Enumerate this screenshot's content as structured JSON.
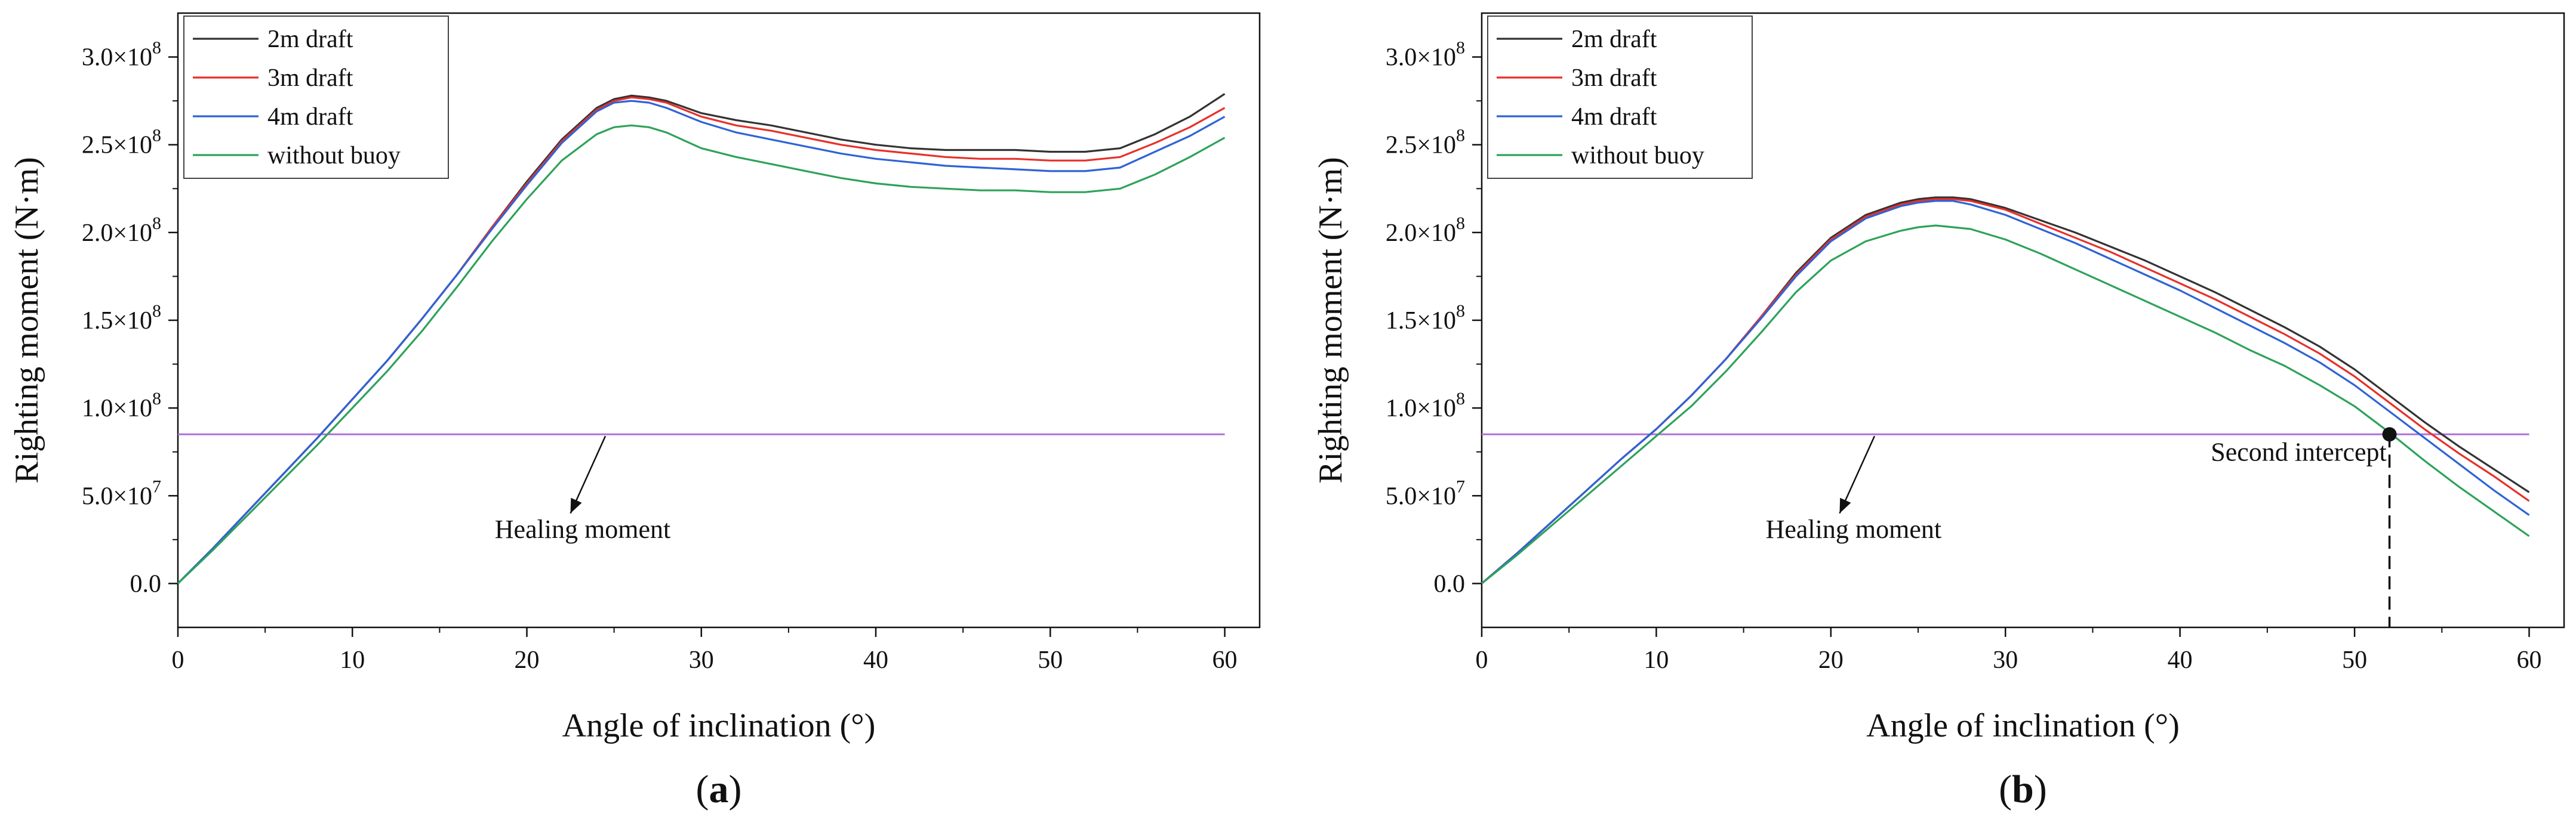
{
  "figure": {
    "colors": {
      "2m draft": "#333333",
      "3m draft": "#e8302a",
      "4m draft": "#2f63d6",
      "without buoy": "#2ea25a",
      "healing": "#b070d8",
      "axis": "#111111"
    }
  },
  "chart_data": [
    {
      "type": "line",
      "panel_label": "a",
      "xlabel": "Angle of inclination (°)",
      "ylabel": "Righting moment (N·m)",
      "xlim": [
        0,
        62
      ],
      "ylim": [
        -25000000.0,
        325000000.0
      ],
      "xticks": [
        0,
        10,
        20,
        30,
        40,
        50,
        60
      ],
      "xtick_labels": [
        "0",
        "10",
        "20",
        "30",
        "40",
        "50",
        "60"
      ],
      "yticks": [
        0,
        50000000.0,
        100000000.0,
        150000000.0,
        200000000.0,
        250000000.0,
        300000000.0
      ],
      "ytick_labels": [
        {
          "mant": "0.0",
          "exp": ""
        },
        {
          "mant": "5.0×10",
          "exp": "7"
        },
        {
          "mant": "1.0×10",
          "exp": "8"
        },
        {
          "mant": "1.5×10",
          "exp": "8"
        },
        {
          "mant": "2.0×10",
          "exp": "8"
        },
        {
          "mant": "2.5×10",
          "exp": "8"
        },
        {
          "mant": "3.0×10",
          "exp": "8"
        }
      ],
      "legend": [
        "2m draft",
        "3m draft",
        "4m draft",
        "without buoy"
      ],
      "legend_position": "top-left",
      "x": [
        0,
        2,
        4,
        6,
        8,
        10,
        12,
        14,
        16,
        18,
        20,
        22,
        24,
        25,
        26,
        27,
        28,
        30,
        32,
        34,
        36,
        38,
        40,
        42,
        44,
        46,
        48,
        50,
        52,
        54,
        56,
        58,
        60
      ],
      "series": [
        {
          "name": "2m draft",
          "values": [
            0.0,
            20000000.0,
            41000000.0,
            62000000.0,
            83000000.0,
            105000000.0,
            127000000.0,
            151000000.0,
            176000000.0,
            203000000.0,
            229000000.0,
            253000000.0,
            271000000.0,
            276000000.0,
            278000000.0,
            277000000.0,
            275000000.0,
            268000000.0,
            264000000.0,
            261000000.0,
            257000000.0,
            253000000.0,
            250000000.0,
            248000000.0,
            247000000.0,
            247000000.0,
            247000000.0,
            246000000.0,
            246000000.0,
            248000000.0,
            256000000.0,
            266000000.0,
            279000000.0
          ]
        },
        {
          "name": "3m draft",
          "values": [
            0.0,
            20000000.0,
            41000000.0,
            62000000.0,
            83000000.0,
            105000000.0,
            127000000.0,
            151000000.0,
            176000000.0,
            203000000.0,
            228000000.0,
            252000000.0,
            270000000.0,
            275000000.0,
            277000000.0,
            276000000.0,
            274000000.0,
            266000000.0,
            261000000.0,
            258000000.0,
            254000000.0,
            250000000.0,
            247000000.0,
            245000000.0,
            243000000.0,
            242000000.0,
            242000000.0,
            241000000.0,
            241000000.0,
            243000000.0,
            251000000.0,
            260000000.0,
            271000000.0
          ]
        },
        {
          "name": "4m draft",
          "values": [
            0.0,
            20000000.0,
            41000000.0,
            62000000.0,
            83000000.0,
            105000000.0,
            127000000.0,
            151000000.0,
            176000000.0,
            202000000.0,
            227000000.0,
            251000000.0,
            269000000.0,
            274000000.0,
            275000000.0,
            274000000.0,
            271000000.0,
            263000000.0,
            257000000.0,
            253000000.0,
            249000000.0,
            245000000.0,
            242000000.0,
            240000000.0,
            238000000.0,
            237000000.0,
            236000000.0,
            235000000.0,
            235000000.0,
            237000000.0,
            246000000.0,
            255000000.0,
            266000000.0
          ]
        },
        {
          "name": "without buoy",
          "values": [
            0.0,
            19000000.0,
            39000000.0,
            59000000.0,
            79000000.0,
            100000000.0,
            121000000.0,
            144000000.0,
            169000000.0,
            195000000.0,
            219000000.0,
            241000000.0,
            256000000.0,
            260000000.0,
            261000000.0,
            260000000.0,
            257000000.0,
            248000000.0,
            243000000.0,
            239000000.0,
            235000000.0,
            231000000.0,
            228000000.0,
            226000000.0,
            225000000.0,
            224000000.0,
            224000000.0,
            223000000.0,
            223000000.0,
            225000000.0,
            233000000.0,
            243000000.0,
            254000000.0
          ]
        }
      ],
      "healing_moment": {
        "value": 85000000.0,
        "x_range": [
          0,
          60
        ]
      },
      "annotations": [
        {
          "text": "Healing moment",
          "x": 23.2,
          "y": 26000000.0,
          "arrow_from": [
            24.5,
            84000000.0
          ],
          "arrow_to": [
            22.5,
            40000000.0
          ]
        }
      ]
    },
    {
      "type": "line",
      "panel_label": "b",
      "xlabel": "Angle of inclination (°)",
      "ylabel": "Righting moment (N·m)",
      "xlim": [
        0,
        62
      ],
      "ylim": [
        -25000000.0,
        325000000.0
      ],
      "xticks": [
        0,
        10,
        20,
        30,
        40,
        50,
        60
      ],
      "xtick_labels": [
        "0",
        "10",
        "20",
        "30",
        "40",
        "50",
        "60"
      ],
      "yticks": [
        0,
        50000000.0,
        100000000.0,
        150000000.0,
        200000000.0,
        250000000.0,
        300000000.0
      ],
      "ytick_labels": [
        {
          "mant": "0.0",
          "exp": ""
        },
        {
          "mant": "5.0×10",
          "exp": "7"
        },
        {
          "mant": "1.0×10",
          "exp": "8"
        },
        {
          "mant": "1.5×10",
          "exp": "8"
        },
        {
          "mant": "2.0×10",
          "exp": "8"
        },
        {
          "mant": "2.5×10",
          "exp": "8"
        },
        {
          "mant": "3.0×10",
          "exp": "8"
        }
      ],
      "legend": [
        "2m draft",
        "3m draft",
        "4m draft",
        "without buoy"
      ],
      "legend_position": "top-left",
      "x": [
        0,
        2,
        4,
        6,
        8,
        10,
        12,
        14,
        16,
        18,
        20,
        22,
        24,
        25,
        26,
        27,
        28,
        30,
        32,
        34,
        36,
        38,
        40,
        42,
        44,
        46,
        48,
        50,
        52,
        54,
        56,
        58,
        60
      ],
      "series": [
        {
          "name": "2m draft",
          "values": [
            0.0,
            17000000.0,
            35000000.0,
            53000000.0,
            71000000.0,
            88000000.0,
            107000000.0,
            128000000.0,
            152000000.0,
            177000000.0,
            197000000.0,
            210000000.0,
            217000000.0,
            219000000.0,
            220000000.0,
            220000000.0,
            219000000.0,
            214000000.0,
            207000000.0,
            200000000.0,
            192000000.0,
            184000000.0,
            175000000.0,
            166000000.0,
            156000000.0,
            146000000.0,
            135000000.0,
            122000000.0,
            107000000.0,
            92000000.0,
            78000000.0,
            65000000.0,
            52000000.0
          ]
        },
        {
          "name": "3m draft",
          "values": [
            0.0,
            17000000.0,
            35000000.0,
            53000000.0,
            71000000.0,
            88000000.0,
            107000000.0,
            128000000.0,
            152000000.0,
            176000000.0,
            196000000.0,
            209000000.0,
            216000000.0,
            218000000.0,
            219000000.0,
            219000000.0,
            218000000.0,
            213000000.0,
            205000000.0,
            197000000.0,
            189000000.0,
            180000000.0,
            171000000.0,
            162000000.0,
            152000000.0,
            142000000.0,
            131000000.0,
            118000000.0,
            103000000.0,
            88000000.0,
            74000000.0,
            61000000.0,
            47000000.0
          ]
        },
        {
          "name": "4m draft",
          "values": [
            0.0,
            17000000.0,
            35000000.0,
            53000000.0,
            71000000.0,
            88000000.0,
            107000000.0,
            128000000.0,
            151000000.0,
            175000000.0,
            195000000.0,
            208000000.0,
            215000000.0,
            217000000.0,
            218000000.0,
            218000000.0,
            216000000.0,
            210000000.0,
            202000000.0,
            194000000.0,
            185000000.0,
            176000000.0,
            167000000.0,
            157000000.0,
            147000000.0,
            137000000.0,
            126000000.0,
            113000000.0,
            98000000.0,
            83000000.0,
            68000000.0,
            53000000.0,
            39000000.0
          ]
        },
        {
          "name": "without buoy",
          "values": [
            0.0,
            16000000.0,
            33000000.0,
            50000000.0,
            67000000.0,
            84000000.0,
            101000000.0,
            121000000.0,
            143000000.0,
            166000000.0,
            184000000.0,
            195000000.0,
            201000000.0,
            203000000.0,
            204000000.0,
            203000000.0,
            202000000.0,
            196000000.0,
            188000000.0,
            179000000.0,
            170000000.0,
            161000000.0,
            152000000.0,
            143000000.0,
            133000000.0,
            124000000.0,
            113000000.0,
            101000000.0,
            86000000.0,
            70000000.0,
            55000000.0,
            41000000.0,
            27000000.0
          ]
        }
      ],
      "healing_moment": {
        "value": 85000000.0,
        "x_range": [
          0,
          60
        ]
      },
      "annotations": [
        {
          "text": "Healing moment",
          "x": 21.3,
          "y": 26000000.0,
          "arrow_from": [
            22.5,
            84000000.0
          ],
          "arrow_to": [
            20.5,
            40000000.0
          ]
        },
        {
          "text": "Second intercept",
          "x": 46.8,
          "y": 70000000.0,
          "point": [
            52,
            85000000.0
          ],
          "dashed_to_y": -25000000.0
        }
      ]
    }
  ]
}
